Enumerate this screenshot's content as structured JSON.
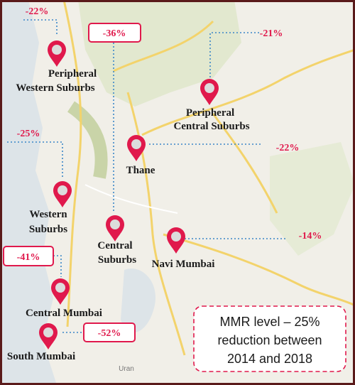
{
  "regions": [
    {
      "name": [
        "Peripheral",
        "Western Suburbs"
      ],
      "change": "-22%"
    },
    {
      "name": [
        "Peripheral",
        "Central Suburbs"
      ],
      "change": "-21%"
    },
    {
      "name": [
        "Thane"
      ],
      "change": "-22%"
    },
    {
      "name": [
        "Western",
        "Suburbs"
      ],
      "change": "-25%"
    },
    {
      "name": [
        "Central",
        "Suburbs"
      ],
      "change": "-36%"
    },
    {
      "name": [
        "Navi Mumbai"
      ],
      "change": "-14%"
    },
    {
      "name": [
        "Central Mumbai"
      ],
      "change": "-41%"
    },
    {
      "name": [
        "South Mumbai"
      ],
      "change": "-52%"
    }
  ],
  "summary": [
    "MMR level – 25%",
    "reduction between",
    "2014 and 2018"
  ],
  "map_labels": [
    "Uran"
  ]
}
